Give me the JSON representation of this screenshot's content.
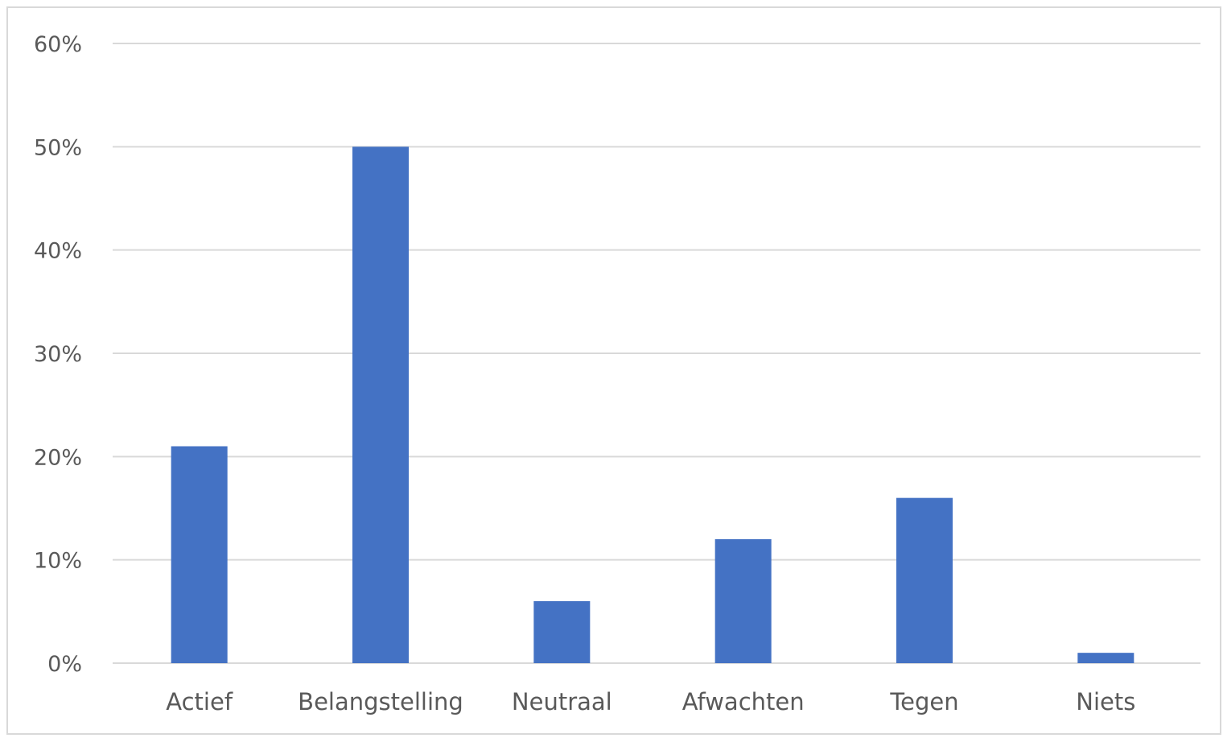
{
  "chart_data": {
    "type": "bar",
    "categories": [
      "Actief",
      "Belangstelling",
      "Neutraal",
      "Afwachten",
      "Tegen",
      "Niets"
    ],
    "values": [
      21,
      50,
      6,
      12,
      16,
      1
    ],
    "y_tick_labels": [
      "0%",
      "10%",
      "20%",
      "30%",
      "40%",
      "50%",
      "60%"
    ],
    "ylim": [
      0,
      60
    ],
    "y_unit": "%",
    "grid": true,
    "legend": "none",
    "bar_color": "#4472c4",
    "grid_color": "#d9d9d9",
    "text_color": "#595959"
  }
}
